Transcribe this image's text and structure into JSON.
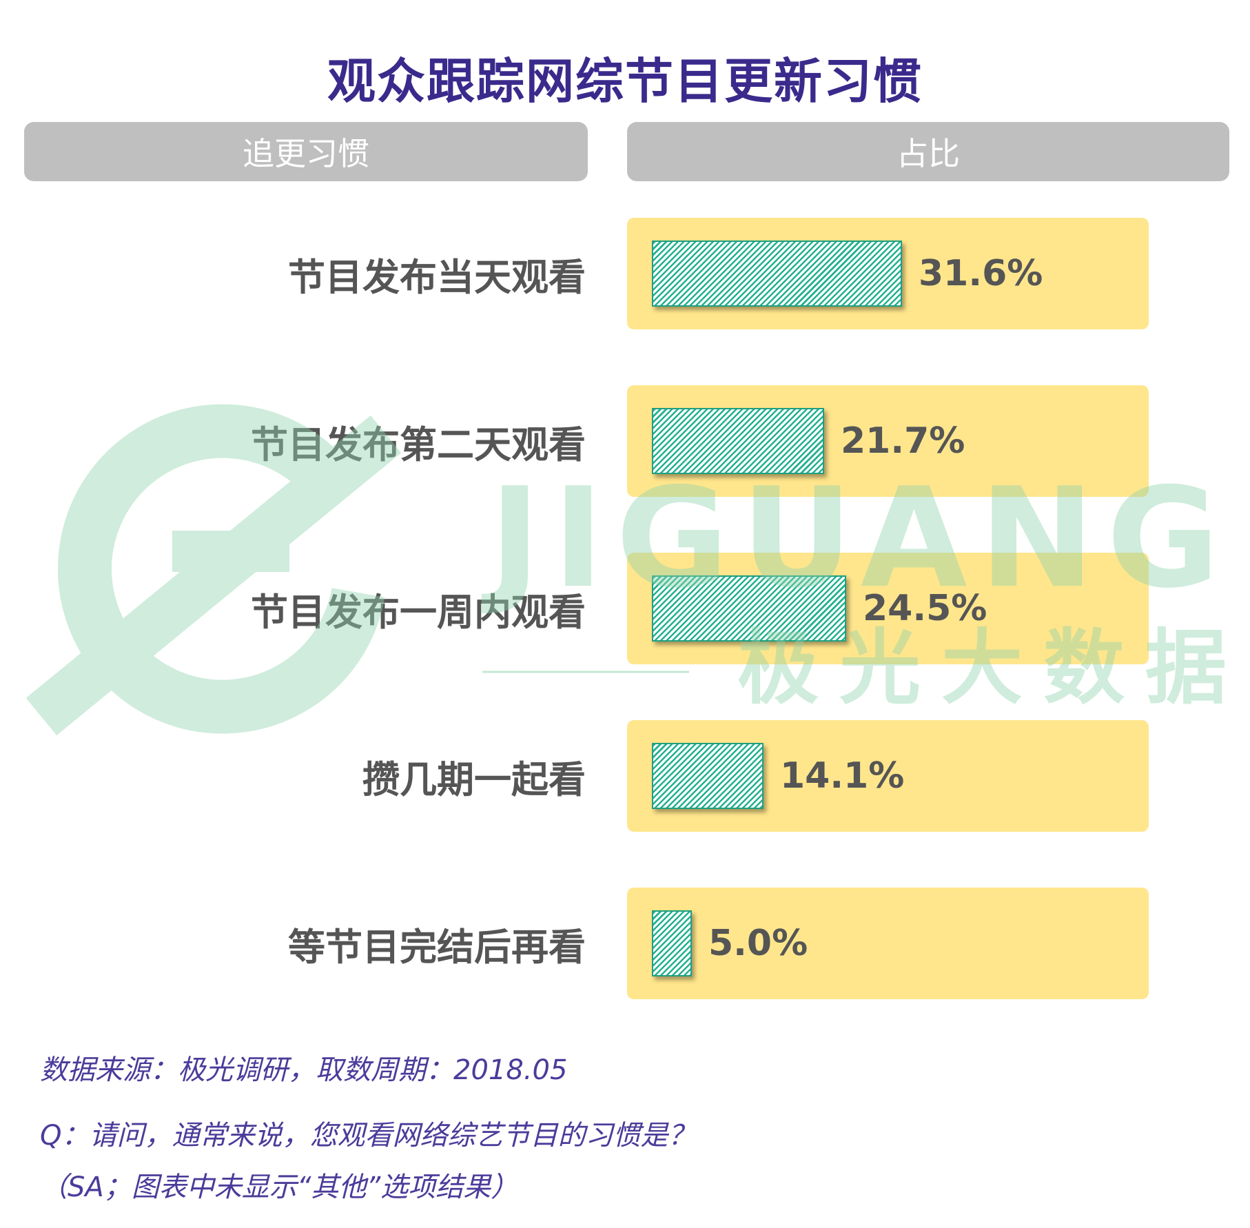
{
  "title": "观众跟踪网综节目更新习惯",
  "headers": {
    "left": "追更习惯",
    "right": "占比"
  },
  "watermark": {
    "brand": "JIGUANG",
    "subtitle": "极光大数据"
  },
  "colors": {
    "title": "#3b2a8c",
    "track": "#ffe68c",
    "bar": "#23b08f",
    "header": "#bfbfbf",
    "note": "#4a3c9a"
  },
  "chart_data": {
    "type": "bar",
    "orientation": "horizontal",
    "categories": [
      "节目发布当天观看",
      "节目发布第二天观看",
      "节目发布一周内观看",
      "攒几期一起看",
      "等节目完结后再看"
    ],
    "values": [
      31.6,
      21.7,
      24.5,
      14.1,
      5.0
    ],
    "value_labels": [
      "31.6%",
      "21.7%",
      "24.5%",
      "14.1%",
      "5.0%"
    ],
    "xlim": [
      0,
      100
    ],
    "grid": false
  },
  "notes": {
    "source": "数据来源：极光调研，取数周期：2018.05",
    "question": "Q：请问，通常来说，您观看网络综艺节目的习惯是？",
    "remark": "（SA；图表中未显示“其他”选项结果）"
  }
}
